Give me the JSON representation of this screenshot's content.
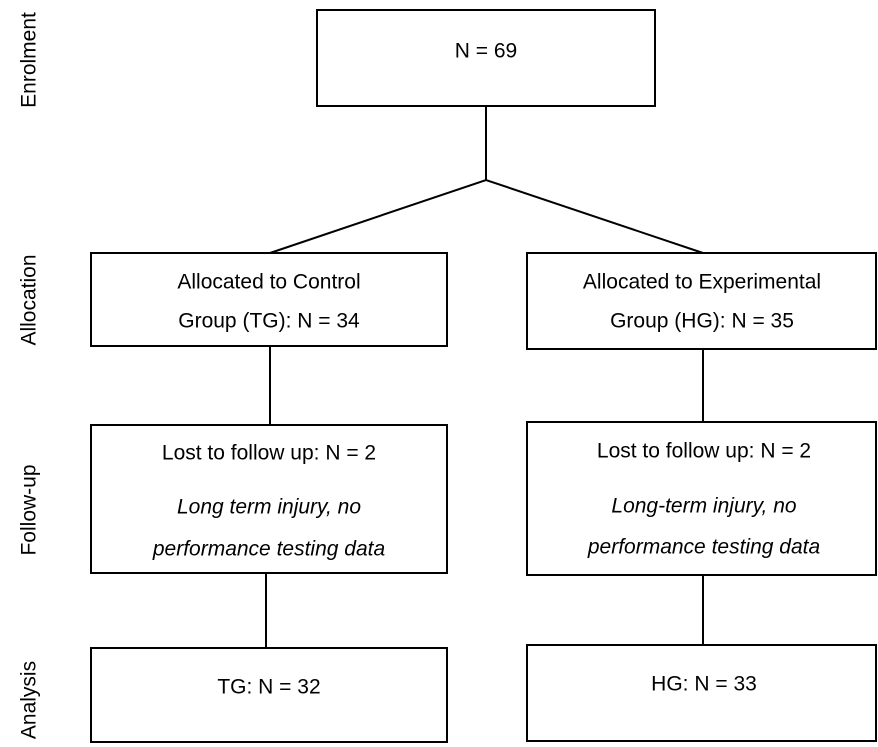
{
  "stages": [
    "Enrolment",
    "Allocation",
    "Follow-up",
    "Analysis"
  ],
  "nodes": [
    {
      "lines": [
        "N = 69"
      ]
    },
    {
      "lines": [
        "Allocated to Control",
        "Group (TG): N = 34"
      ]
    },
    {
      "lines": [
        "Allocated to Experimental",
        "Group (HG): N = 35"
      ]
    },
    {
      "lines": [
        "Lost to follow up: N = 2"
      ],
      "note": [
        "Long term injury, no",
        "performance testing data"
      ]
    },
    {
      "lines": [
        "Lost to follow up: N = 2"
      ],
      "note": [
        "Long-term injury, no",
        "performance testing data"
      ]
    },
    {
      "lines": [
        "TG: N = 32"
      ]
    },
    {
      "lines": [
        "HG: N = 33"
      ]
    }
  ]
}
